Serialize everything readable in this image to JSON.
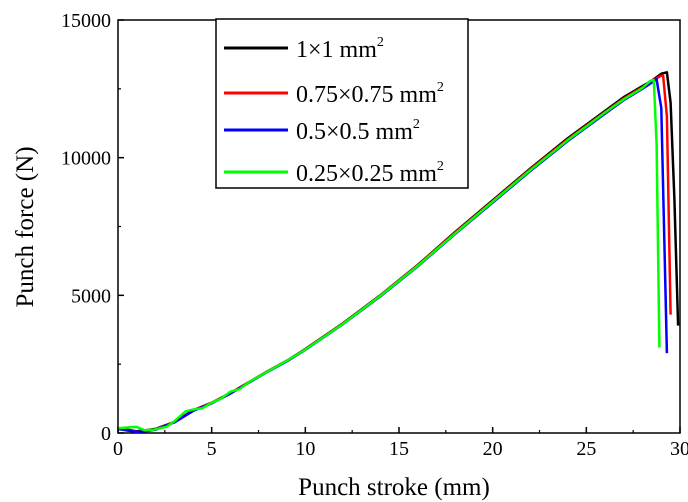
{
  "chart_data": {
    "type": "line",
    "title": "",
    "xlabel": "Punch stroke (mm)",
    "ylabel": "Punch force (N)",
    "xlim": [
      0,
      30
    ],
    "ylim": [
      0,
      15000
    ],
    "x_ticks": [
      0,
      5,
      10,
      15,
      20,
      25,
      30
    ],
    "y_ticks": [
      0,
      5000,
      10000,
      15000
    ],
    "x_tick_labels": [
      "0",
      "5",
      "10",
      "15",
      "20",
      "25",
      "30"
    ],
    "y_tick_labels": [
      "0",
      "5000",
      "10000",
      "15000"
    ],
    "grid": false,
    "legend_placement": "top-center",
    "series": [
      {
        "name": "1×1 mm",
        "name_sup": "2",
        "color": "#000000",
        "points": [
          [
            0,
            150
          ],
          [
            0.5,
            120
          ],
          [
            1.0,
            60
          ],
          [
            1.5,
            100
          ],
          [
            2.0,
            150
          ],
          [
            3.0,
            400
          ],
          [
            4.0,
            820
          ],
          [
            5.0,
            1100
          ],
          [
            6.0,
            1450
          ],
          [
            7.0,
            1850
          ],
          [
            8.0,
            2250
          ],
          [
            9.0,
            2620
          ],
          [
            10.0,
            3050
          ],
          [
            12.0,
            3980
          ],
          [
            14.0,
            5000
          ],
          [
            16.0,
            6100
          ],
          [
            18.0,
            7300
          ],
          [
            20.0,
            8450
          ],
          [
            22.0,
            9600
          ],
          [
            24.0,
            10700
          ],
          [
            26.0,
            11700
          ],
          [
            27.0,
            12200
          ],
          [
            28.0,
            12600
          ],
          [
            28.5,
            12800
          ],
          [
            29.0,
            13050
          ],
          [
            29.3,
            13100
          ],
          [
            29.5,
            12000
          ],
          [
            29.7,
            8500
          ],
          [
            29.9,
            3900
          ]
        ]
      },
      {
        "name": "0.75×0.75 mm",
        "name_sup": "2",
        "color": "#ff0000",
        "points": [
          [
            0,
            150
          ],
          [
            0.5,
            100
          ],
          [
            1.0,
            50
          ],
          [
            1.5,
            80
          ],
          [
            2.0,
            130
          ],
          [
            3.0,
            400
          ],
          [
            4.0,
            810
          ],
          [
            5.0,
            1100
          ],
          [
            6.0,
            1450
          ],
          [
            7.0,
            1850
          ],
          [
            8.0,
            2250
          ],
          [
            9.0,
            2620
          ],
          [
            10.0,
            3040
          ],
          [
            12.0,
            3970
          ],
          [
            14.0,
            4990
          ],
          [
            16.0,
            6090
          ],
          [
            18.0,
            7280
          ],
          [
            20.0,
            8420
          ],
          [
            22.0,
            9570
          ],
          [
            24.0,
            10660
          ],
          [
            26.0,
            11660
          ],
          [
            27.0,
            12150
          ],
          [
            28.0,
            12560
          ],
          [
            28.5,
            12780
          ],
          [
            29.0,
            12980
          ],
          [
            29.1,
            12990
          ],
          [
            29.3,
            11500
          ],
          [
            29.5,
            4300
          ]
        ]
      },
      {
        "name": "0.5×0.5 mm",
        "name_sup": "2",
        "color": "#0000ff",
        "points": [
          [
            0,
            150
          ],
          [
            0.5,
            90
          ],
          [
            1.0,
            40
          ],
          [
            1.5,
            70
          ],
          [
            2.0,
            120
          ],
          [
            3.0,
            380
          ],
          [
            4.0,
            800
          ],
          [
            5.0,
            1080
          ],
          [
            6.0,
            1430
          ],
          [
            7.0,
            1830
          ],
          [
            8.0,
            2230
          ],
          [
            9.0,
            2600
          ],
          [
            10.0,
            3020
          ],
          [
            12.0,
            3950
          ],
          [
            14.0,
            4960
          ],
          [
            16.0,
            6050
          ],
          [
            18.0,
            7230
          ],
          [
            20.0,
            8370
          ],
          [
            22.0,
            9510
          ],
          [
            24.0,
            10600
          ],
          [
            26.0,
            11600
          ],
          [
            27.0,
            12090
          ],
          [
            28.0,
            12500
          ],
          [
            28.5,
            12730
          ],
          [
            28.75,
            12850
          ],
          [
            29.0,
            11800
          ],
          [
            29.3,
            2900
          ]
        ]
      },
      {
        "name": "0.25×0.25 mm",
        "name_sup": "2",
        "color": "#00ff00",
        "points": [
          [
            0,
            170
          ],
          [
            0.5,
            200
          ],
          [
            1.0,
            220
          ],
          [
            1.4,
            100
          ],
          [
            1.9,
            120
          ],
          [
            2.6,
            230
          ],
          [
            3.0,
            420
          ],
          [
            3.6,
            780
          ],
          [
            4.0,
            850
          ],
          [
            4.5,
            900
          ],
          [
            5.0,
            1100
          ],
          [
            5.5,
            1250
          ],
          [
            6.0,
            1500
          ],
          [
            6.5,
            1600
          ],
          [
            7.0,
            1850
          ],
          [
            8.0,
            2240
          ],
          [
            9.0,
            2620
          ],
          [
            10.0,
            3030
          ],
          [
            12.0,
            3960
          ],
          [
            14.0,
            4980
          ],
          [
            16.0,
            6070
          ],
          [
            18.0,
            7250
          ],
          [
            20.0,
            8400
          ],
          [
            22.0,
            9540
          ],
          [
            24.0,
            10630
          ],
          [
            26.0,
            11640
          ],
          [
            27.0,
            12120
          ],
          [
            28.0,
            12530
          ],
          [
            28.4,
            12780
          ],
          [
            28.6,
            12820
          ],
          [
            28.75,
            10500
          ],
          [
            28.9,
            3100
          ]
        ]
      }
    ]
  }
}
